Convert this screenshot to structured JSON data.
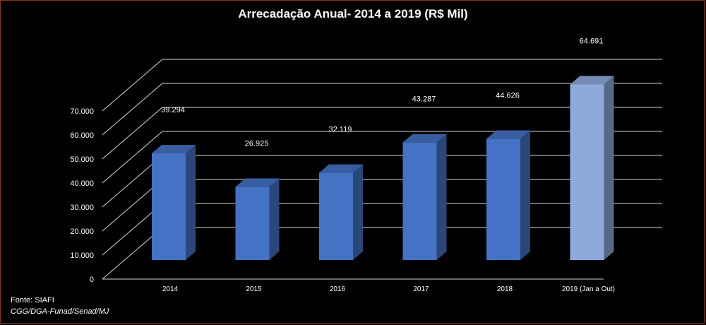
{
  "chart_data": {
    "type": "bar",
    "title": "Arrecadação  Anual- 2014 a 2019 (R$ Mil)",
    "categories": [
      "2014",
      "2015",
      "2016",
      "2017",
      "2018",
      "2019 (Jan a Out)"
    ],
    "values": [
      39294,
      26925,
      32119,
      43287,
      44626,
      64691
    ],
    "data_labels": [
      "39.294",
      "26.925",
      "32.119",
      "43.287",
      "44.626",
      "64.691"
    ],
    "y_ticks": [
      "0",
      "10.000",
      "20.000",
      "30.000",
      "40.000",
      "50.000",
      "60.000",
      "70.000"
    ],
    "ylim": [
      0,
      70000
    ],
    "grid": true,
    "bar_color": "#4472c4",
    "highlight_color": "#8eaadb"
  },
  "footnote": {
    "source": "Fonte: SIAFI",
    "org": "CGG/DGA-Funad/Senad/MJ"
  }
}
